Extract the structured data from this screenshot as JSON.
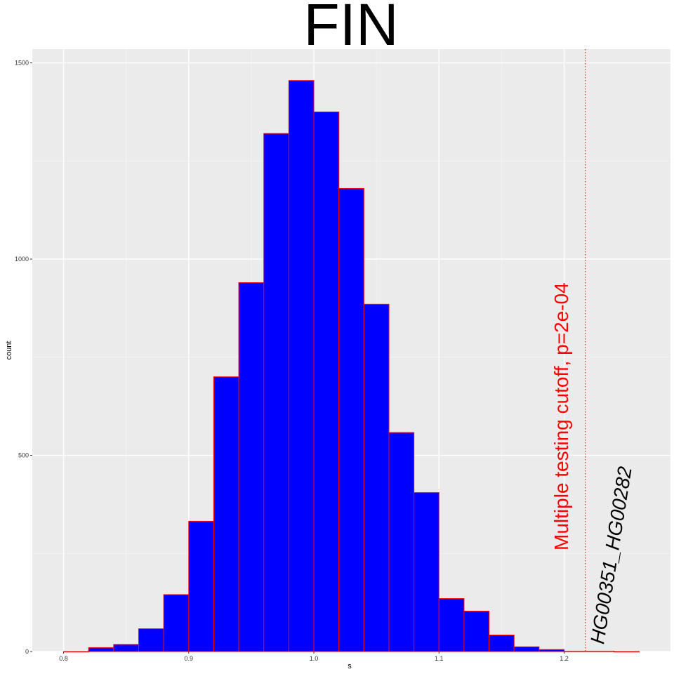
{
  "chart_data": {
    "type": "bar",
    "title": "FIN",
    "xlabel": "s",
    "ylabel": "count",
    "xlim": [
      0.775,
      1.285
    ],
    "ylim": [
      0,
      1535
    ],
    "x_ticks": [
      0.8,
      0.9,
      1.0,
      1.1,
      1.2
    ],
    "x_tick_labels": [
      "0.8",
      "0.9",
      "1.0",
      "1.1",
      "1.2"
    ],
    "y_ticks": [
      0,
      500,
      1000,
      1500
    ],
    "y_tick_labels": [
      "0",
      "500",
      "1000",
      "1500"
    ],
    "grid": true,
    "bin_width": 0.02,
    "bin_centers": [
      0.81,
      0.83,
      0.85,
      0.87,
      0.89,
      0.91,
      0.93,
      0.95,
      0.97,
      0.99,
      1.01,
      1.03,
      1.05,
      1.07,
      1.09,
      1.11,
      1.13,
      1.15,
      1.17,
      1.19,
      1.21,
      1.23,
      1.25
    ],
    "values": [
      0,
      10,
      18,
      58,
      145,
      332,
      700,
      940,
      1320,
      1455,
      1375,
      1180,
      885,
      558,
      405,
      135,
      103,
      42,
      12,
      5,
      1,
      1,
      0
    ],
    "fill_color": "#0000ff",
    "edge_color": "#ff0000",
    "cutoff": {
      "x": 1.217,
      "label": "Multiple testing cutoff, p=2e-04",
      "color": "#ff0000"
    },
    "annotation": {
      "x": 1.235,
      "y": 10,
      "label": "HG00351_HG00282"
    }
  }
}
